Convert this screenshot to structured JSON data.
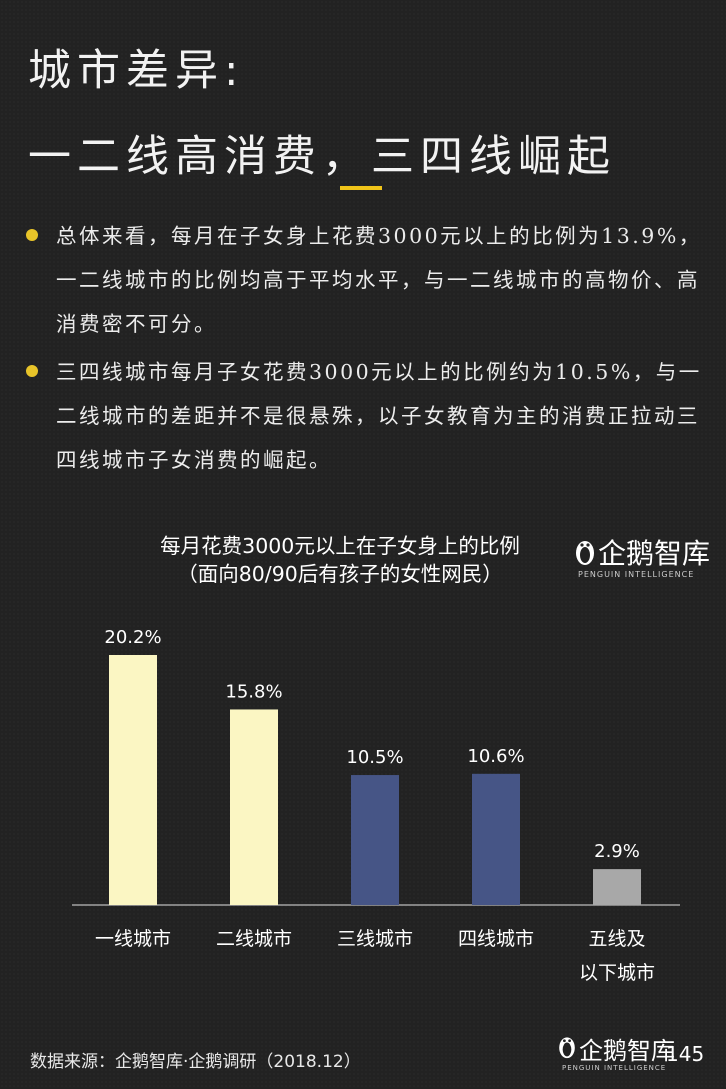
{
  "header": {
    "title_line1": "城市差异:",
    "title_line2": "一二线高消费，三四线崛起"
  },
  "bullets": [
    {
      "text": "总体来看，每月在子女身上花费3000元以上的比例为13.9%，一二线城市的比例均高于平均水平，与一二线城市的高物价、高消费密不可分。"
    },
    {
      "text": "三四线城市每月子女花费3000元以上的比例约为10.5%，与一二线城市的差距并不是很悬殊，以子女教育为主的消费正拉动三四线城市子女消费的崛起。"
    }
  ],
  "logo": {
    "name": "企鹅智库",
    "sub": "PENGUIN INTELLIGENCE"
  },
  "chart_data": {
    "type": "bar",
    "title": "每月花费3000元以上在子女身上的比例",
    "subtitle": "（面向80/90后有孩子的女性网民）",
    "categories": [
      [
        "一线城市"
      ],
      [
        "二线城市"
      ],
      [
        "三线城市"
      ],
      [
        "四线城市"
      ],
      [
        "五线及",
        "以下城市"
      ]
    ],
    "values": [
      20.2,
      15.8,
      10.5,
      10.6,
      2.9
    ],
    "value_labels": [
      "20.2%",
      "15.8%",
      "10.5%",
      "10.6%",
      "2.9%"
    ],
    "colors": [
      "#fbf6c3",
      "#fbf6c3",
      "#465586",
      "#465586",
      "#a8a8a8"
    ],
    "ylim": [
      0,
      20.2
    ],
    "grid": false
  },
  "footer": {
    "source": "数据来源：企鹅智库·企鹅调研（2018.12）",
    "page_number": "145"
  }
}
